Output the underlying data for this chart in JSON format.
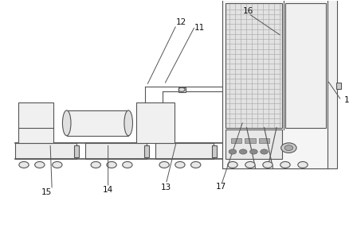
{
  "bg_color": "#ffffff",
  "line_color": "#555555",
  "lw": 0.8,
  "fig_w": 4.43,
  "fig_h": 2.87
}
